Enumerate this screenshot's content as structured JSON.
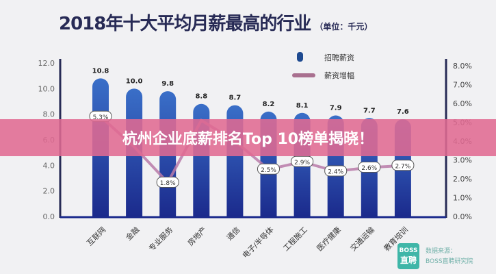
{
  "chart_data": {
    "type": "bar",
    "title": "2018年十大平均月薪最高的行业",
    "unit": "（单位：千元）",
    "categories": [
      "互联网",
      "金融",
      "专业服务",
      "房地产",
      "通信",
      "电子/半导体",
      "工程施工",
      "医疗健康",
      "交通运输",
      "教育培训"
    ],
    "series": [
      {
        "name": "招聘薪资",
        "type": "bar",
        "axis": "left",
        "values": [
          10.8,
          10.0,
          9.8,
          8.8,
          8.7,
          8.2,
          8.1,
          7.9,
          7.7,
          7.6
        ],
        "color": "#2a4ab0"
      },
      {
        "name": "薪资增幅",
        "type": "line",
        "axis": "right",
        "values": [
          5.3,
          3.7,
          1.8,
          5.1,
          4.0,
          2.5,
          2.9,
          2.4,
          2.6,
          2.7
        ],
        "color": "#b97aa8"
      }
    ],
    "left_axis": {
      "range": [
        0,
        12
      ],
      "ticks": [
        "0.0",
        "2.0",
        "4.0",
        "6.0",
        "8.0",
        "10.0",
        "12.0"
      ]
    },
    "right_axis": {
      "range": [
        0,
        8
      ],
      "ticks": [
        "0.0%",
        "1.0%",
        "2.0%",
        "3.0%",
        "4.0%",
        "5.0%",
        "6.0%",
        "7.0%",
        "8.0%"
      ]
    },
    "bar_labels": [
      "10.8",
      "10.0",
      "9.8",
      "8.8",
      "8.7",
      "8.2",
      "8.1",
      "7.9",
      "7.7",
      "7.6"
    ],
    "line_labels": [
      "5.3%",
      "",
      "1.8%",
      "",
      "",
      "2.5%",
      "2.9%",
      "2.4%",
      "2.6%",
      "2.7%"
    ],
    "legend_placement": "top-right"
  },
  "banner": {
    "text": "杭州企业底薪排名Top 10榜单揭晓！"
  },
  "source": {
    "logo_line1": "BOSS",
    "logo_line2": "直聘",
    "label": "数据来源：",
    "name": "BOSS直聘研究院"
  }
}
